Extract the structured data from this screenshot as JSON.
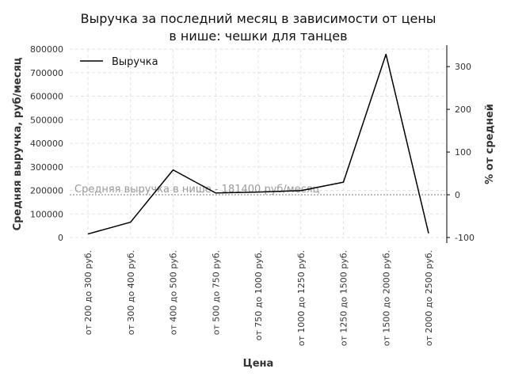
{
  "chart_data": {
    "type": "line",
    "title_lines": [
      "Выручка за последний месяц в зависимости от цены",
      "в нише: чешки для танцев"
    ],
    "xlabel": "Цена",
    "ylabel": "Средняя выручка, руб/месяц",
    "ylabel_right": "% от средней",
    "categories": [
      "от 200 до 300 руб.",
      "от 300 до 400 руб.",
      "от 400 до 500 руб.",
      "от 500 до 750 руб.",
      "от 750 до 1000 руб.",
      "от 1000 до 1250 руб.",
      "от 1250 до 1500 руб.",
      "от 1500 до 2000 руб.",
      "от 2000 до 2500 руб."
    ],
    "series": [
      {
        "name": "Выручка",
        "color": "#000000",
        "values": [
          15000,
          65000,
          287000,
          189000,
          193000,
          199000,
          235000,
          778000,
          18000
        ]
      }
    ],
    "ylim": [
      0,
      800000
    ],
    "yticks": [
      0,
      100000,
      200000,
      300000,
      400000,
      500000,
      600000,
      700000,
      800000
    ],
    "y2lim": [
      -100,
      340
    ],
    "y2ticks": [
      -100,
      0,
      100,
      200,
      300
    ],
    "average": 181400,
    "average_label": "Средняя выручка в нише - 181400 руб/месяц",
    "grid": true,
    "legend_position": "top-left"
  }
}
